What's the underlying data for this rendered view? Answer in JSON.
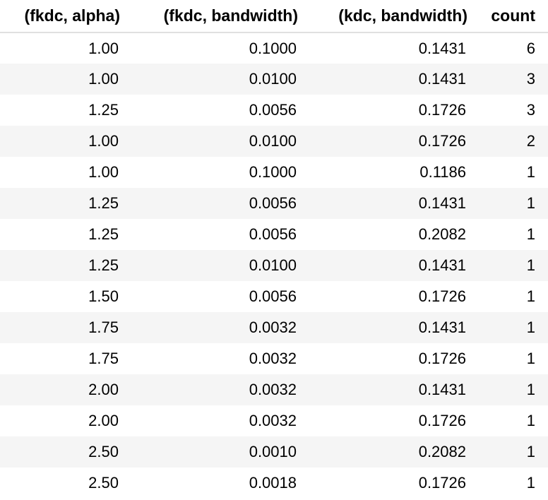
{
  "table": {
    "columns": [
      "(fkdc, alpha)",
      "(fkdc, bandwidth)",
      "(kdc, bandwidth)",
      "count"
    ],
    "rows": [
      [
        "1.00",
        "0.1000",
        "0.1431",
        "6"
      ],
      [
        "1.00",
        "0.0100",
        "0.1431",
        "3"
      ],
      [
        "1.25",
        "0.0056",
        "0.1726",
        "3"
      ],
      [
        "1.00",
        "0.0100",
        "0.1726",
        "2"
      ],
      [
        "1.00",
        "0.1000",
        "0.1186",
        "1"
      ],
      [
        "1.25",
        "0.0056",
        "0.1431",
        "1"
      ],
      [
        "1.25",
        "0.0056",
        "0.2082",
        "1"
      ],
      [
        "1.25",
        "0.0100",
        "0.1431",
        "1"
      ],
      [
        "1.50",
        "0.0056",
        "0.1726",
        "1"
      ],
      [
        "1.75",
        "0.0032",
        "0.1431",
        "1"
      ],
      [
        "1.75",
        "0.0032",
        "0.1726",
        "1"
      ],
      [
        "2.00",
        "0.0032",
        "0.1431",
        "1"
      ],
      [
        "2.00",
        "0.0032",
        "0.1726",
        "1"
      ],
      [
        "2.50",
        "0.0010",
        "0.2082",
        "1"
      ],
      [
        "2.50",
        "0.0018",
        "0.1726",
        "1"
      ]
    ]
  }
}
